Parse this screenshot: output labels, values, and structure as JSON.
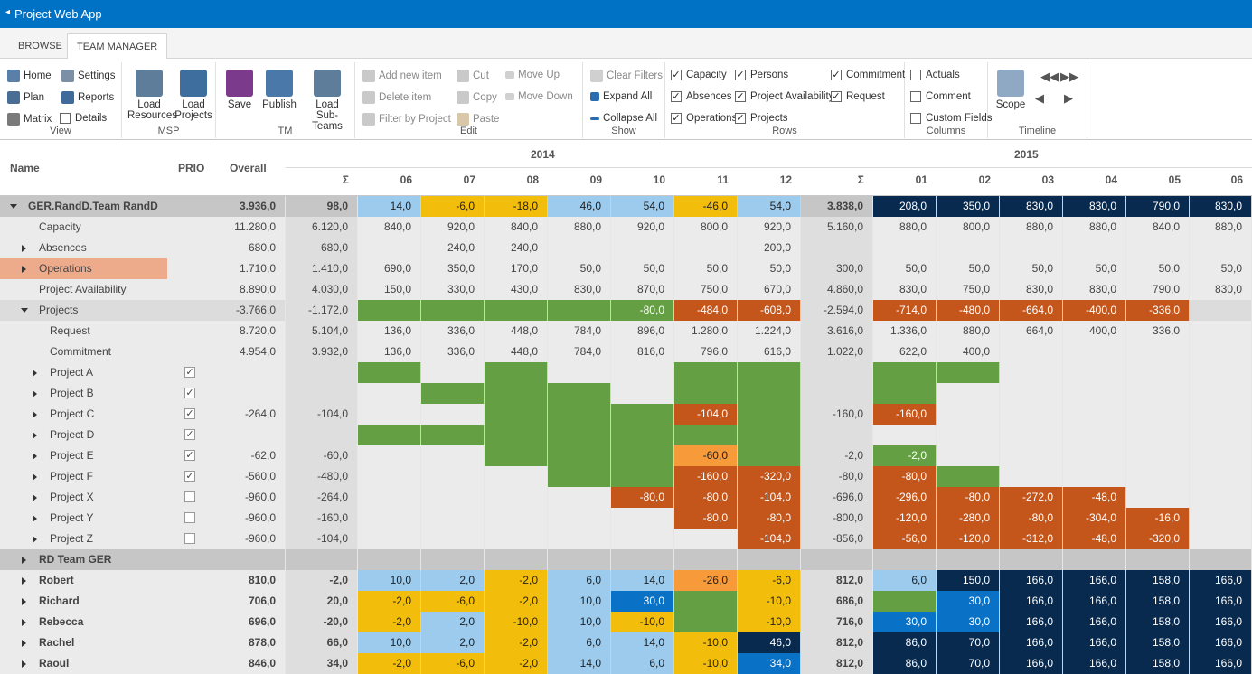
{
  "app": {
    "back_glyph": "◂",
    "title": "Project Web App"
  },
  "tabs": [
    "BROWSE",
    "TEAM MANAGER"
  ],
  "ribbon": {
    "view": {
      "name": "View",
      "home": "Home",
      "settings": "Settings",
      "plan": "Plan",
      "reports": "Reports",
      "matrix": "Matrix",
      "details": "Details"
    },
    "msp": {
      "name": "MSP",
      "load_resources": [
        "Load",
        "Resources"
      ],
      "load_projects": [
        "Load",
        "Projects"
      ]
    },
    "tm": {
      "name": "TM",
      "save": "Save",
      "publish": "Publish",
      "load_subteams": [
        "Load",
        "Sub-Teams"
      ]
    },
    "edit": {
      "name": "Edit",
      "add_new_item": "Add new item",
      "delete_item": "Delete item",
      "filter_by_project": "Filter by Project",
      "cut": "Cut",
      "copy": "Copy",
      "paste": "Paste",
      "move_up": "Move Up",
      "move_down": "Move Down"
    },
    "show": {
      "name": "Show",
      "clear_filters": "Clear Filters",
      "expand_all": "Expand All",
      "collapse_all": "Collapse All"
    },
    "rows": {
      "name": "Rows",
      "capacity": "Capacity",
      "absences": "Absences",
      "operations": "Operations",
      "persons": "Persons",
      "project_availability": "Project Availability",
      "projects": "Projects",
      "commitment": "Commitment",
      "request": "Request"
    },
    "columns": {
      "name": "Columns",
      "actuals": "Actuals",
      "comment": "Comment",
      "custom_fields": "Custom Fields"
    },
    "timeline": {
      "name": "Timeline",
      "scope": "Scope"
    }
  },
  "header": {
    "name": "Name",
    "prio": "PRIO",
    "overall": "Overall",
    "year1": "2014",
    "year2": "2015",
    "cols": [
      "Σ",
      "06",
      "07",
      "08",
      "09",
      "10",
      "11",
      "12",
      "Σ",
      "01",
      "02",
      "03",
      "04",
      "05",
      "06"
    ]
  },
  "colors": {
    "green": "#64a043",
    "orange": "#c4561c",
    "lightorange": "#f79a3a",
    "yellow": "#f2bd0b",
    "lightblue": "#9ccbee",
    "blue": "#0a72c6",
    "navy": "#082a4f",
    "gray": "#d9d9d9",
    "darkgray": "#c3c3c3",
    "salmon": "#eeab8c"
  },
  "rows": [
    {
      "name": "GER.RandD.Team RandD",
      "lvl": 0,
      "exp": "d",
      "bold": true,
      "bg": "darkgray",
      "overall": "3.936,0",
      "cells": [
        "98,0",
        "14,0",
        "-6,0",
        "-18,0",
        "46,0",
        "54,0",
        "-46,0",
        "54,0",
        "3.838,0",
        "208,0",
        "350,0",
        "830,0",
        "830,0",
        "790,0",
        "830,0"
      ],
      "cc": [
        "",
        "lightblue",
        "yellow",
        "yellow",
        "lightblue",
        "lightblue",
        "yellow",
        "lightblue",
        "",
        "navy",
        "navy",
        "navy",
        "navy",
        "navy",
        "navy"
      ]
    },
    {
      "name": "Capacity",
      "lvl": 1,
      "overall": "11.280,0",
      "cells": [
        "6.120,0",
        "840,0",
        "920,0",
        "840,0",
        "880,0",
        "920,0",
        "800,0",
        "920,0",
        "5.160,0",
        "880,0",
        "800,0",
        "880,0",
        "880,0",
        "840,0",
        "880,0"
      ]
    },
    {
      "name": "Absences",
      "lvl": 1,
      "exp": "r",
      "overall": "680,0",
      "cells": [
        "680,0",
        "",
        "240,0",
        "240,0",
        "",
        "",
        "",
        "200,0",
        "",
        "",
        "",
        "",
        "",
        "",
        ""
      ]
    },
    {
      "name": "Operations",
      "lvl": 1,
      "exp": "r",
      "salmon": true,
      "overall": "1.710,0",
      "cells": [
        "1.410,0",
        "690,0",
        "350,0",
        "170,0",
        "50,0",
        "50,0",
        "50,0",
        "50,0",
        "300,0",
        "50,0",
        "50,0",
        "50,0",
        "50,0",
        "50,0",
        "50,0"
      ]
    },
    {
      "name": "Project Availability",
      "lvl": 1,
      "overall": "8.890,0",
      "cells": [
        "4.030,0",
        "150,0",
        "330,0",
        "430,0",
        "830,0",
        "870,0",
        "750,0",
        "670,0",
        "4.860,0",
        "830,0",
        "750,0",
        "830,0",
        "830,0",
        "790,0",
        "830,0"
      ]
    },
    {
      "name": "Projects",
      "lvl": 1,
      "exp": "d",
      "bg": "gray2",
      "overall": "-3.766,0",
      "cells": [
        "-1.172,0",
        "",
        "",
        "",
        "",
        "-80,0",
        "-484,0",
        "-608,0",
        "-2.594,0",
        "-714,0",
        "-480,0",
        "-664,0",
        "-400,0",
        "-336,0",
        ""
      ],
      "cc": [
        "",
        "green",
        "green",
        "green",
        "green",
        "green",
        "orange",
        "orange",
        "",
        "orange",
        "orange",
        "orange",
        "orange",
        "orange",
        ""
      ]
    },
    {
      "name": "Request",
      "lvl": 2,
      "overall": "8.720,0",
      "cells": [
        "5.104,0",
        "136,0",
        "336,0",
        "448,0",
        "784,0",
        "896,0",
        "1.280,0",
        "1.224,0",
        "3.616,0",
        "1.336,0",
        "880,0",
        "664,0",
        "400,0",
        "336,0",
        ""
      ]
    },
    {
      "name": "Commitment",
      "lvl": 2,
      "overall": "4.954,0",
      "cells": [
        "3.932,0",
        "136,0",
        "336,0",
        "448,0",
        "784,0",
        "816,0",
        "796,0",
        "616,0",
        "1.022,0",
        "622,0",
        "400,0",
        "",
        "",
        "",
        ""
      ]
    },
    {
      "name": "Project A",
      "lvl": 2,
      "exp": "r",
      "chk": "✓",
      "overall": "",
      "cells": [
        "",
        "",
        "",
        "",
        "",
        "",
        "",
        "",
        "",
        "",
        "",
        "",
        "",
        "",
        ""
      ],
      "cc": [
        "",
        "green",
        "",
        "green",
        "",
        "",
        "green",
        "green",
        "",
        "green",
        "green",
        "",
        "",
        "",
        ""
      ]
    },
    {
      "name": "Project B",
      "lvl": 2,
      "exp": "r",
      "chk": "✓",
      "overall": "",
      "cells": [
        "",
        "",
        "",
        "",
        "",
        "",
        "",
        "",
        "",
        "",
        "",
        "",
        "",
        "",
        ""
      ],
      "cc": [
        "",
        "",
        "green",
        "green",
        "green",
        "",
        "green",
        "green",
        "",
        "green",
        "",
        "",
        "",
        "",
        ""
      ]
    },
    {
      "name": "Project C",
      "lvl": 2,
      "exp": "r",
      "chk": "✓",
      "overall": "-264,0",
      "cells": [
        "-104,0",
        "",
        "",
        "",
        "",
        "",
        "-104,0",
        "",
        "-160,0",
        "-160,0",
        "",
        "",
        "",
        "",
        ""
      ],
      "cc": [
        "",
        "",
        "",
        "green",
        "green",
        "green",
        "orange",
        "green",
        "",
        "orange",
        "",
        "",
        "",
        "",
        ""
      ]
    },
    {
      "name": "Project D",
      "lvl": 2,
      "exp": "r",
      "chk": "✓",
      "overall": "",
      "cells": [
        "",
        "",
        "",
        "",
        "",
        "",
        "",
        "",
        "",
        "",
        "",
        "",
        "",
        "",
        ""
      ],
      "cc": [
        "",
        "green",
        "green",
        "green",
        "green",
        "green",
        "green",
        "green",
        "",
        "",
        "",
        "",
        "",
        "",
        ""
      ]
    },
    {
      "name": "Project E",
      "lvl": 2,
      "exp": "r",
      "chk": "✓",
      "overall": "-62,0",
      "cells": [
        "-60,0",
        "",
        "",
        "",
        "",
        "",
        "-60,0",
        "",
        "-2,0",
        "-2,0",
        "",
        "",
        "",
        "",
        ""
      ],
      "cc": [
        "",
        "",
        "",
        "green",
        "green",
        "green",
        "lightorange",
        "green",
        "",
        "green",
        "",
        "",
        "",
        "",
        ""
      ]
    },
    {
      "name": "Project F",
      "lvl": 2,
      "exp": "r",
      "chk": "✓",
      "overall": "-560,0",
      "cells": [
        "-480,0",
        "",
        "",
        "",
        "",
        "",
        "-160,0",
        "-320,0",
        "-80,0",
        "-80,0",
        "",
        "",
        "",
        "",
        ""
      ],
      "cc": [
        "",
        "",
        "",
        "",
        "green",
        "green",
        "orange",
        "orange",
        "",
        "orange",
        "green",
        "",
        "",
        "",
        ""
      ]
    },
    {
      "name": "Project X",
      "lvl": 2,
      "exp": "r",
      "chk": "",
      "overall": "-960,0",
      "cells": [
        "-264,0",
        "",
        "",
        "",
        "",
        "-80,0",
        "-80,0",
        "-104,0",
        "-696,0",
        "-296,0",
        "-80,0",
        "-272,0",
        "-48,0",
        "",
        ""
      ],
      "cc": [
        "",
        "",
        "",
        "",
        "",
        "orange",
        "orange",
        "orange",
        "",
        "orange",
        "orange",
        "orange",
        "orange",
        "",
        ""
      ]
    },
    {
      "name": "Project Y",
      "lvl": 2,
      "exp": "r",
      "chk": "",
      "overall": "-960,0",
      "cells": [
        "-160,0",
        "",
        "",
        "",
        "",
        "",
        "-80,0",
        "-80,0",
        "-800,0",
        "-120,0",
        "-280,0",
        "-80,0",
        "-304,0",
        "-16,0",
        ""
      ],
      "cc": [
        "",
        "",
        "",
        "",
        "",
        "",
        "orange",
        "orange",
        "",
        "orange",
        "orange",
        "orange",
        "orange",
        "orange",
        ""
      ]
    },
    {
      "name": "Project Z",
      "lvl": 2,
      "exp": "r",
      "chk": "",
      "overall": "-960,0",
      "cells": [
        "-104,0",
        "",
        "",
        "",
        "",
        "",
        "",
        "-104,0",
        "-856,0",
        "-56,0",
        "-120,0",
        "-312,0",
        "-48,0",
        "-320,0",
        ""
      ],
      "cc": [
        "",
        "",
        "",
        "",
        "",
        "",
        "",
        "orange",
        "",
        "orange",
        "orange",
        "orange",
        "orange",
        "orange",
        ""
      ]
    },
    {
      "name": "RD Team GER",
      "lvl": 1,
      "exp": "r",
      "bold": true,
      "bg": "darkgray",
      "overall": "",
      "cells": [
        "",
        "",
        "",
        "",
        "",
        "",
        "",
        "",
        "",
        "",
        "",
        "",
        "",
        "",
        ""
      ]
    },
    {
      "name": "Robert",
      "lvl": 1,
      "exp": "r",
      "bold": true,
      "overall": "810,0",
      "cells": [
        "-2,0",
        "10,0",
        "2,0",
        "-2,0",
        "6,0",
        "14,0",
        "-26,0",
        "-6,0",
        "812,0",
        "6,0",
        "150,0",
        "166,0",
        "166,0",
        "158,0",
        "166,0"
      ],
      "cc": [
        "",
        "lightblue",
        "lightblue",
        "yellow",
        "lightblue",
        "lightblue",
        "lightorange",
        "yellow",
        "",
        "lightblue",
        "navy",
        "navy",
        "navy",
        "navy",
        "navy"
      ]
    },
    {
      "name": "Richard",
      "lvl": 1,
      "exp": "r",
      "bold": true,
      "overall": "706,0",
      "cells": [
        "20,0",
        "-2,0",
        "-6,0",
        "-2,0",
        "10,0",
        "30,0",
        "",
        "-10,0",
        "686,0",
        "",
        "30,0",
        "166,0",
        "166,0",
        "158,0",
        "166,0"
      ],
      "cc": [
        "",
        "yellow",
        "yellow",
        "yellow",
        "lightblue",
        "blue",
        "green",
        "yellow",
        "",
        "green",
        "blue",
        "navy",
        "navy",
        "navy",
        "navy"
      ]
    },
    {
      "name": "Rebecca",
      "lvl": 1,
      "exp": "r",
      "bold": true,
      "overall": "696,0",
      "cells": [
        "-20,0",
        "-2,0",
        "2,0",
        "-10,0",
        "10,0",
        "-10,0",
        "",
        "-10,0",
        "716,0",
        "30,0",
        "30,0",
        "166,0",
        "166,0",
        "158,0",
        "166,0"
      ],
      "cc": [
        "",
        "yellow",
        "lightblue",
        "yellow",
        "lightblue",
        "yellow",
        "green",
        "yellow",
        "",
        "blue",
        "blue",
        "navy",
        "navy",
        "navy",
        "navy"
      ]
    },
    {
      "name": "Rachel",
      "lvl": 1,
      "exp": "r",
      "bold": true,
      "overall": "878,0",
      "cells": [
        "66,0",
        "10,0",
        "2,0",
        "-2,0",
        "6,0",
        "14,0",
        "-10,0",
        "46,0",
        "812,0",
        "86,0",
        "70,0",
        "166,0",
        "166,0",
        "158,0",
        "166,0"
      ],
      "cc": [
        "",
        "lightblue",
        "lightblue",
        "yellow",
        "lightblue",
        "lightblue",
        "yellow",
        "navy",
        "",
        "navy",
        "navy",
        "navy",
        "navy",
        "navy",
        "navy"
      ]
    },
    {
      "name": "Raoul",
      "lvl": 1,
      "exp": "r",
      "bold": true,
      "overall": "846,0",
      "cells": [
        "34,0",
        "-2,0",
        "-6,0",
        "-2,0",
        "14,0",
        "6,0",
        "-10,0",
        "34,0",
        "812,0",
        "86,0",
        "70,0",
        "166,0",
        "166,0",
        "158,0",
        "166,0"
      ],
      "cc": [
        "",
        "yellow",
        "yellow",
        "yellow",
        "lightblue",
        "lightblue",
        "yellow",
        "blue",
        "",
        "navy",
        "navy",
        "navy",
        "navy",
        "navy",
        "navy"
      ]
    }
  ]
}
